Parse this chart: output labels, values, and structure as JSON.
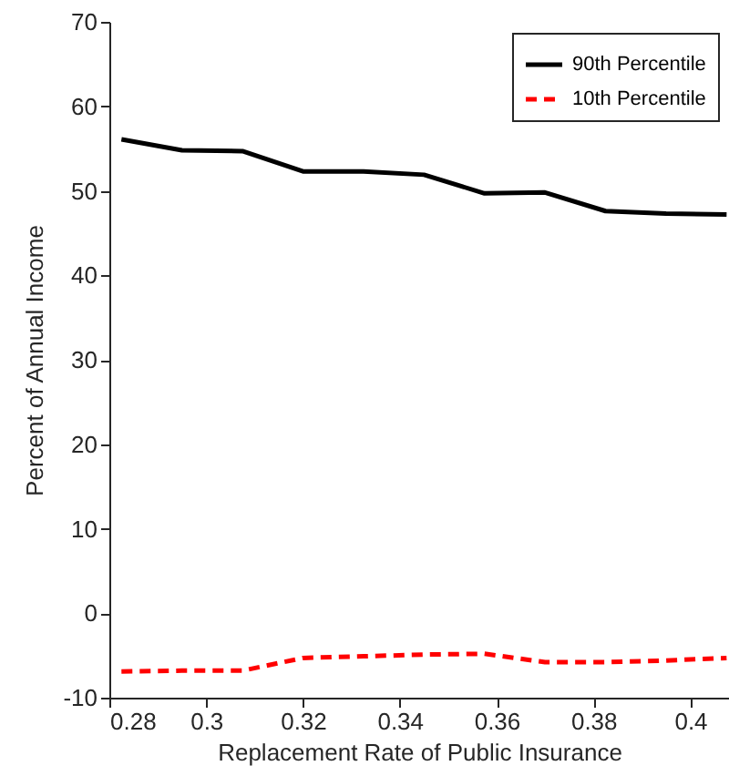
{
  "chart_data": {
    "type": "line",
    "xlabel": "Replacement Rate of Public Insurance",
    "ylabel": "Percent of Annual Income",
    "x": [
      0.2825,
      0.295,
      0.3075,
      0.32,
      0.3325,
      0.345,
      0.3575,
      0.37,
      0.3825,
      0.395,
      0.4075
    ],
    "series": [
      {
        "name": "90th Percentile",
        "color": "#000000",
        "line_style": "solid",
        "values": [
          56.1,
          54.8,
          54.7,
          52.3,
          52.3,
          51.9,
          49.7,
          49.8,
          47.6,
          47.3,
          47.2
        ]
      },
      {
        "name": "10th Percentile",
        "color": "#ff0000",
        "line_style": "dashed",
        "values": [
          -6.9,
          -6.8,
          -6.8,
          -5.3,
          -5.1,
          -4.9,
          -4.8,
          -5.8,
          -5.8,
          -5.6,
          -5.3
        ]
      }
    ],
    "xlim": [
      0.28,
      0.408
    ],
    "xticks": [
      0.28,
      0.3,
      0.32,
      0.34,
      0.36,
      0.38,
      0.4
    ],
    "ylim": [
      -10,
      70
    ],
    "yticks": [
      -10,
      0,
      10,
      20,
      30,
      40,
      50,
      60,
      70
    ],
    "grid": false,
    "legend": "top right"
  }
}
